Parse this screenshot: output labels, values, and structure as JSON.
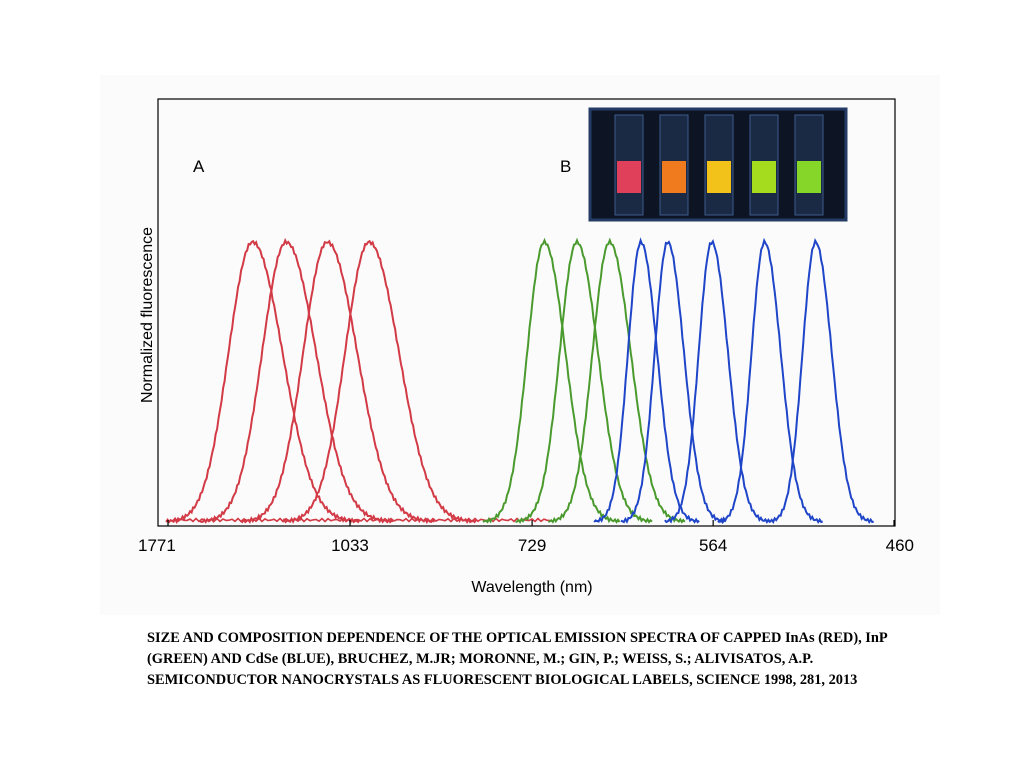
{
  "chart_data": {
    "type": "line",
    "panel_labels": [
      "A",
      "B"
    ],
    "ylabel": "Normalized fluorescence",
    "xlabel": "Wavelength (nm)",
    "x_tick_labels": [
      "1771",
      "1033",
      "729",
      "564",
      "460"
    ],
    "x_tick_values": [
      1771,
      1033,
      729,
      564,
      460
    ],
    "x_axis_scale": "reciprocal (energy-linear), wavelength decreasing left to right",
    "ylim": [
      0,
      1
    ],
    "grid": false,
    "series_groups": [
      {
        "material": "InAs",
        "color": "#d23a46",
        "peaks_nm": [
          1330,
          1210,
          1090,
          990
        ]
      },
      {
        "material": "InP",
        "color": "#4a9a2e",
        "peaks_nm": [
          715,
          680,
          648
        ]
      },
      {
        "material": "CdSe",
        "color": "#1f45c8",
        "peaks_nm": [
          620,
          598,
          565,
          530,
          500
        ]
      }
    ]
  },
  "inset": {
    "vial_colors": [
      "#e0405a",
      "#f07a1e",
      "#f2c21a",
      "#a6dc1e",
      "#86d62a"
    ]
  },
  "caption": "SIZE AND COMPOSITION DEPENDENCE OF THE OPTICAL EMISSION SPECTRA OF CAPPED InAs (RED), InP (GREEN) AND CdSe (BLUE), BRUCHEZ, M.JR; MORONNE, M.; GIN, P.; WEISS, S.; ALIVISATOS, A.P.  SEMICONDUCTOR NANOCRYSTALS AS FLUORESCENT BIOLOGICAL LABELS, SCIENCE 1998, 281, 2013"
}
